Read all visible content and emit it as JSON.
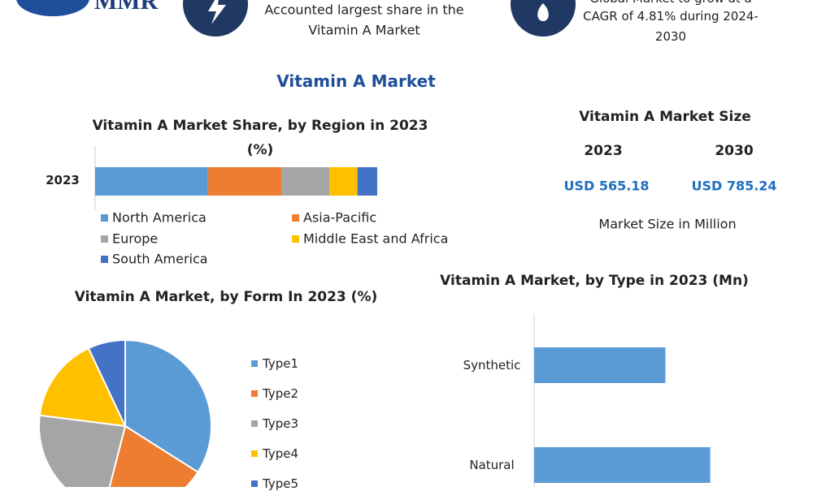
{
  "header": {
    "logo": "MMR",
    "share_text": [
      "Accounted largest share in the",
      "Vitamin A Market"
    ],
    "growth_text": [
      "Global Market to grow at a",
      "CAGR of 4.81% during 2024-",
      "2030"
    ]
  },
  "title": "Vitamin A Market",
  "market_size": {
    "title": "Vitamin A Market Size",
    "years": [
      "2023",
      "2030"
    ],
    "values": [
      "USD 565.18",
      "USD 785.24"
    ],
    "note": "Market Size in Million"
  },
  "chart_data": [
    {
      "type": "stacked_bar",
      "title": "Vitamin A Market Share, by Region in 2023 (%)",
      "categories": [
        "2023"
      ],
      "xlim": [
        0,
        100
      ],
      "series": [
        {
          "name": "North America",
          "color": "#5b9bd5",
          "values": [
            40
          ]
        },
        {
          "name": "Asia-Pacific",
          "color": "#ed7d31",
          "values": [
            26
          ]
        },
        {
          "name": "Europe",
          "color": "#a5a5a5",
          "values": [
            17
          ]
        },
        {
          "name": "Middle East and Africa",
          "color": "#ffc000",
          "values": [
            10
          ]
        },
        {
          "name": "South America",
          "color": "#4472c4",
          "values": [
            7
          ]
        }
      ]
    },
    {
      "type": "pie",
      "title": "Vitamin A Market, by Form In 2023 (%)",
      "categories": [
        "Type1",
        "Type2",
        "Type3",
        "Type4",
        "Type5"
      ],
      "values": [
        34,
        20,
        23,
        16,
        7
      ],
      "colors": [
        "#5b9bd5",
        "#ed7d31",
        "#a5a5a5",
        "#ffc000",
        "#4472c4"
      ]
    },
    {
      "type": "hbar",
      "title": "Vitamin A Market, by Type in 2023 (Mn)",
      "categories": [
        "Synthetic",
        "Natural"
      ],
      "values": [
        240,
        322
      ],
      "color": "#5b9bd5",
      "xlim": [
        0,
        440
      ]
    }
  ]
}
